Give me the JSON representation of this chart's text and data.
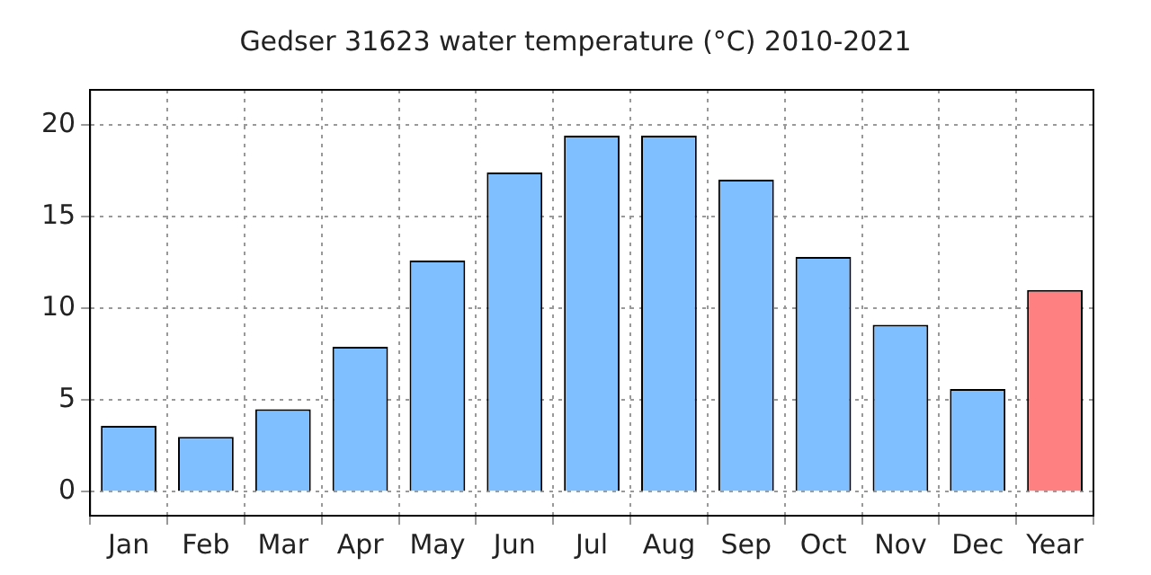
{
  "chart_data": {
    "type": "bar",
    "title": "Gedser 31623 water temperature (°C) 2010-2021",
    "categories": [
      "Jan",
      "Feb",
      "Mar",
      "Apr",
      "May",
      "Jun",
      "Jul",
      "Aug",
      "Sep",
      "Oct",
      "Nov",
      "Dec",
      "Year"
    ],
    "values": [
      3.6,
      3.0,
      4.5,
      7.9,
      12.6,
      17.4,
      19.4,
      19.4,
      17.0,
      12.8,
      9.1,
      5.6,
      11.0
    ],
    "colors": [
      "#80bfff",
      "#80bfff",
      "#80bfff",
      "#80bfff",
      "#80bfff",
      "#80bfff",
      "#80bfff",
      "#80bfff",
      "#80bfff",
      "#80bfff",
      "#80bfff",
      "#80bfff",
      "#ff8080"
    ],
    "ylim": [
      -1.3,
      21.9
    ],
    "yticks": [
      0,
      5,
      10,
      15,
      20
    ],
    "grid": true,
    "line_style": "dotted",
    "legend": false
  }
}
